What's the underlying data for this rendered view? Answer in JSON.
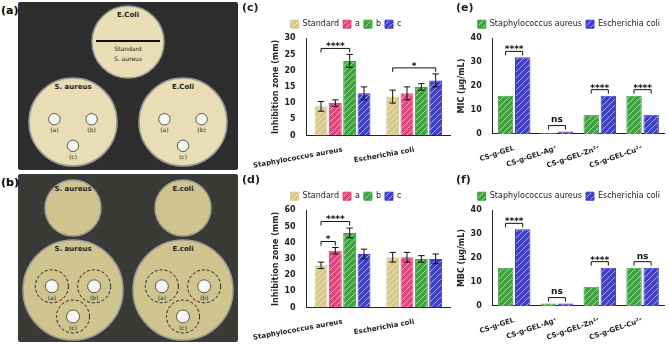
{
  "photos": [
    {
      "panel": "(a)",
      "plates": [
        {
          "label": "E.Coli",
          "texts": [
            "Standard",
            "S. aureus"
          ],
          "discs": []
        },
        {
          "label": "S. aureus",
          "texts": [],
          "discs": [
            "(a)",
            "(b)",
            "(c)"
          ]
        },
        {
          "label": "E.Coli",
          "texts": [],
          "discs": [
            "(a)",
            "(b)",
            "(c)"
          ]
        }
      ]
    },
    {
      "panel": "(b)",
      "plates": [
        {
          "label": "S. aureus",
          "texts": [],
          "discs": []
        },
        {
          "label": "E.coli",
          "texts": [],
          "discs": []
        },
        {
          "label": "S. aureus",
          "texts": [],
          "discs": [
            "(a)",
            "(b)",
            "(c)"
          ]
        },
        {
          "label": "E.coli",
          "texts": [],
          "discs": [
            "(a)",
            "(b)",
            "(c)"
          ]
        }
      ]
    }
  ],
  "chart_data": [
    {
      "type": "bar",
      "title": "(c)",
      "ylabel": "Inhibition zone (mm)",
      "categories": [
        "Staphylococcus aureus",
        "Escherichia coli"
      ],
      "series": [
        {
          "name": "Standard",
          "color": "#d8c98a",
          "values": [
            9,
            12
          ],
          "errors": [
            1.5,
            2
          ]
        },
        {
          "name": "a",
          "color": "#e5457f",
          "values": [
            10,
            13
          ],
          "errors": [
            1,
            2
          ]
        },
        {
          "name": "b",
          "color": "#3da33d",
          "values": [
            23,
            15
          ],
          "errors": [
            2,
            1
          ]
        },
        {
          "name": "c",
          "color": "#3f3fc9",
          "values": [
            13,
            17
          ],
          "errors": [
            2,
            2
          ]
        }
      ],
      "ylim": [
        0,
        30
      ],
      "yticks": [
        0,
        5,
        10,
        15,
        20,
        25,
        30
      ],
      "grid": false,
      "legend": "top",
      "annotations": [
        {
          "text": "****",
          "category": "Staphylococcus aureus",
          "from": "Standard",
          "to": "b"
        },
        {
          "text": "*",
          "category": "Escherichia coli",
          "from": "Standard",
          "to": "c"
        }
      ]
    },
    {
      "type": "bar",
      "title": "(d)",
      "ylabel": "Inhibition zone (mm)",
      "categories": [
        "Staphylococcus aureus",
        "Escherichia coli"
      ],
      "series": [
        {
          "name": "Standard",
          "color": "#d8c98a",
          "values": [
            26,
            31
          ],
          "errors": [
            2,
            3
          ]
        },
        {
          "name": "a",
          "color": "#e5457f",
          "values": [
            35,
            31
          ],
          "errors": [
            2,
            3
          ]
        },
        {
          "name": "b",
          "color": "#3da33d",
          "values": [
            46,
            30
          ],
          "errors": [
            3,
            2
          ]
        },
        {
          "name": "c",
          "color": "#3f3fc9",
          "values": [
            33,
            30
          ],
          "errors": [
            3,
            3
          ]
        }
      ],
      "ylim": [
        0,
        60
      ],
      "yticks": [
        0,
        10,
        20,
        30,
        40,
        50,
        60
      ],
      "grid": false,
      "legend": "top",
      "annotations": [
        {
          "text": "*",
          "category": "Staphylococcus aureus",
          "from": "Standard",
          "to": "a"
        },
        {
          "text": "****",
          "category": "Staphylococcus aureus",
          "from": "Standard",
          "to": "b"
        }
      ]
    },
    {
      "type": "bar",
      "title": "(e)",
      "ylabel": "MIC (µg/mL)",
      "categories": [
        "CS-g-GEL",
        "CS-g-GEL-Ag⁺",
        "CS-g-GEL-Zn²⁺",
        "CS-g-GEL-Cu²⁺"
      ],
      "series": [
        {
          "name": "Staphylococcus aureus",
          "color": "#3da33d",
          "values": [
            16,
            0.5,
            8,
            16
          ]
        },
        {
          "name": "Escherichia coli",
          "color": "#3f3fc9",
          "values": [
            32,
            1,
            16,
            8
          ]
        }
      ],
      "ylim": [
        0,
        40
      ],
      "yticks": [
        0,
        10,
        20,
        30,
        40
      ],
      "grid": false,
      "legend": "top right",
      "annotations": [
        {
          "text": "****",
          "category": "CS-g-GEL",
          "from": "Staphylococcus aureus",
          "to": "Escherichia coli"
        },
        {
          "text": "ns",
          "category": "CS-g-GEL-Ag⁺",
          "from": "Staphylococcus aureus",
          "to": "Escherichia coli"
        },
        {
          "text": "****",
          "category": "CS-g-GEL-Zn²⁺",
          "from": "Staphylococcus aureus",
          "to": "Escherichia coli"
        },
        {
          "text": "****",
          "category": "CS-g-GEL-Cu²⁺",
          "from": "Staphylococcus aureus",
          "to": "Escherichia coli"
        }
      ]
    },
    {
      "type": "bar",
      "title": "(f)",
      "ylabel": "MBC (µg/mL)",
      "categories": [
        "CS-g-GEL",
        "CS-g-GEL-Ag⁺",
        "CS-g-GEL-Zn²⁺",
        "CS-g-GEL-Cu²⁺"
      ],
      "series": [
        {
          "name": "Staphylococcus aureus",
          "color": "#3da33d",
          "values": [
            16,
            1,
            8,
            16
          ]
        },
        {
          "name": "Escherichia coli",
          "color": "#3f3fc9",
          "values": [
            32,
            1,
            16,
            16
          ]
        }
      ],
      "ylim": [
        0,
        40
      ],
      "yticks": [
        0,
        10,
        20,
        30,
        40
      ],
      "grid": false,
      "legend": "top right",
      "annotations": [
        {
          "text": "****",
          "category": "CS-g-GEL",
          "from": "Staphylococcus aureus",
          "to": "Escherichia coli"
        },
        {
          "text": "ns",
          "category": "CS-g-GEL-Ag⁺",
          "from": "Staphylococcus aureus",
          "to": "Escherichia coli"
        },
        {
          "text": "****",
          "category": "CS-g-GEL-Zn²⁺",
          "from": "Staphylococcus aureus",
          "to": "Escherichia coli"
        },
        {
          "text": "ns",
          "category": "CS-g-GEL-Cu²⁺",
          "from": "Staphylococcus aureus",
          "to": "Escherichia coli"
        }
      ]
    }
  ]
}
